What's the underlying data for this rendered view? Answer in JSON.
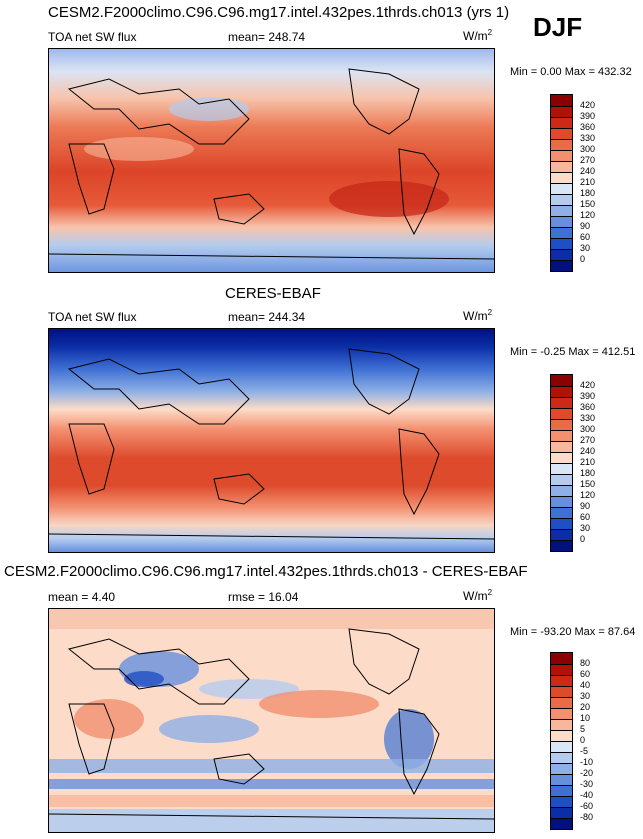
{
  "season": "DJF",
  "panels": [
    {
      "title": "CESM2.F2000climo.C96.C96.mg17.intel.432pes.1thrds.ch013 (yrs 1)",
      "left_label": "TOA net SW flux",
      "center_label": "mean= 248.74",
      "unit": "W/m",
      "unit_sup": "2",
      "minmax": "Min =   0.00 Max = 432.32",
      "colorbar_ticks": [
        "420",
        "390",
        "360",
        "330",
        "300",
        "270",
        "240",
        "210",
        "180",
        "150",
        "120",
        "90",
        "60",
        "30",
        "0"
      ],
      "colorbar_colors": [
        "#8b0000",
        "#b01208",
        "#cc2a17",
        "#dd4a2c",
        "#ea6c47",
        "#f39070",
        "#f8b69a",
        "#fcdcc8",
        "#d9e6f6",
        "#b4ccee",
        "#8eb0e6",
        "#6690de",
        "#3f70d4",
        "#1f4fc4",
        "#0b2ea8",
        "#00107f"
      ]
    },
    {
      "title": "CERES-EBAF",
      "left_label": "TOA net SW flux",
      "center_label": "mean= 244.34",
      "unit": "W/m",
      "unit_sup": "2",
      "minmax": "Min =  -0.25 Max = 412.51",
      "colorbar_ticks": [
        "420",
        "390",
        "360",
        "330",
        "300",
        "270",
        "240",
        "210",
        "180",
        "150",
        "120",
        "90",
        "60",
        "30",
        "0"
      ],
      "colorbar_colors": [
        "#8b0000",
        "#b01208",
        "#cc2a17",
        "#dd4a2c",
        "#ea6c47",
        "#f39070",
        "#f8b69a",
        "#fcdcc8",
        "#d9e6f6",
        "#b4ccee",
        "#8eb0e6",
        "#6690de",
        "#3f70d4",
        "#1f4fc4",
        "#0b2ea8",
        "#00107f"
      ]
    },
    {
      "title": "CESM2.F2000climo.C96.C96.mg17.intel.432pes.1thrds.ch013 - CERES-EBAF",
      "left_label": "mean =   4.40",
      "center_label": "rmse =  16.04",
      "unit": "W/m",
      "unit_sup": "2",
      "minmax": "Min = -93.20 Max =  87.64",
      "colorbar_ticks": [
        "80",
        "60",
        "40",
        "30",
        "20",
        "10",
        "5",
        "0",
        "-5",
        "-10",
        "-20",
        "-30",
        "-40",
        "-60",
        "-80"
      ],
      "colorbar_colors": [
        "#8b0000",
        "#b01208",
        "#cc2a17",
        "#dd4a2c",
        "#ea6c47",
        "#f39070",
        "#f8b69a",
        "#fcdcc8",
        "#d9e6f6",
        "#b4ccee",
        "#8eb0e6",
        "#6690de",
        "#3f70d4",
        "#1f4fc4",
        "#0b2ea8",
        "#00107f"
      ]
    }
  ]
}
